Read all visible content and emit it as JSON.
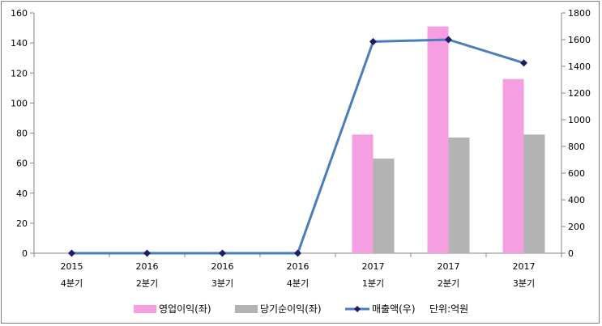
{
  "chart_data": {
    "type": "bar",
    "categories": [
      [
        "2015",
        "4분기"
      ],
      [
        "2016",
        "2분기"
      ],
      [
        "2016",
        "3분기"
      ],
      [
        "2016",
        "4분기"
      ],
      [
        "2017",
        "1분기"
      ],
      [
        "2017",
        "2분기"
      ],
      [
        "2017",
        "3분기"
      ]
    ],
    "series": [
      {
        "name": "영업이익(좌)",
        "type": "bar",
        "axis": "left",
        "color": "#f59ee2",
        "values": [
          0,
          0,
          0,
          0,
          79,
          151,
          116
        ]
      },
      {
        "name": "당기순이익(좌)",
        "type": "bar",
        "axis": "left",
        "color": "#b3b3b3",
        "values": [
          0,
          0,
          0,
          0,
          63,
          77,
          79
        ]
      },
      {
        "name": "매출액(우)",
        "type": "line",
        "axis": "right",
        "color": "#4a7ebb",
        "marker_color": "#1f1a66",
        "values": [
          0,
          0,
          0,
          0,
          1585,
          1600,
          1425
        ]
      }
    ],
    "y_left": {
      "min": 0,
      "max": 160,
      "step": 20
    },
    "y_right": {
      "min": 0,
      "max": 1800,
      "step": 200
    },
    "unit_note": "단위:억원",
    "legend_position": "bottom"
  }
}
